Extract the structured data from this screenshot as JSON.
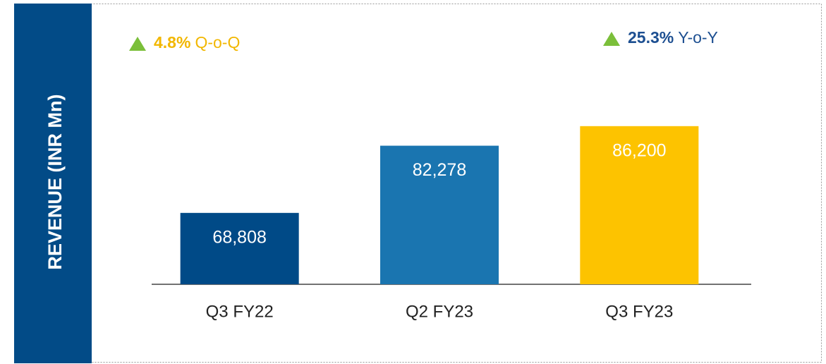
{
  "chart_data": {
    "type": "bar",
    "ylabel": "REVENUE (INR Mn)",
    "categories": [
      "Q3 FY22",
      "Q2 FY23",
      "Q3 FY23"
    ],
    "values": [
      68808,
      82278,
      86200
    ],
    "value_labels": [
      "68,808",
      "82,278",
      "86,200"
    ],
    "colors": [
      "#004a87",
      "#1a75b0",
      "#fdc300"
    ],
    "ylim": [
      54500,
      103000
    ],
    "annotations": [
      {
        "value": "4.8%",
        "text": "Q-o-Q",
        "color": "#f2b700"
      },
      {
        "value": "25.3%",
        "text": "Y-o-Y",
        "color": "#1d4f91"
      }
    ]
  }
}
